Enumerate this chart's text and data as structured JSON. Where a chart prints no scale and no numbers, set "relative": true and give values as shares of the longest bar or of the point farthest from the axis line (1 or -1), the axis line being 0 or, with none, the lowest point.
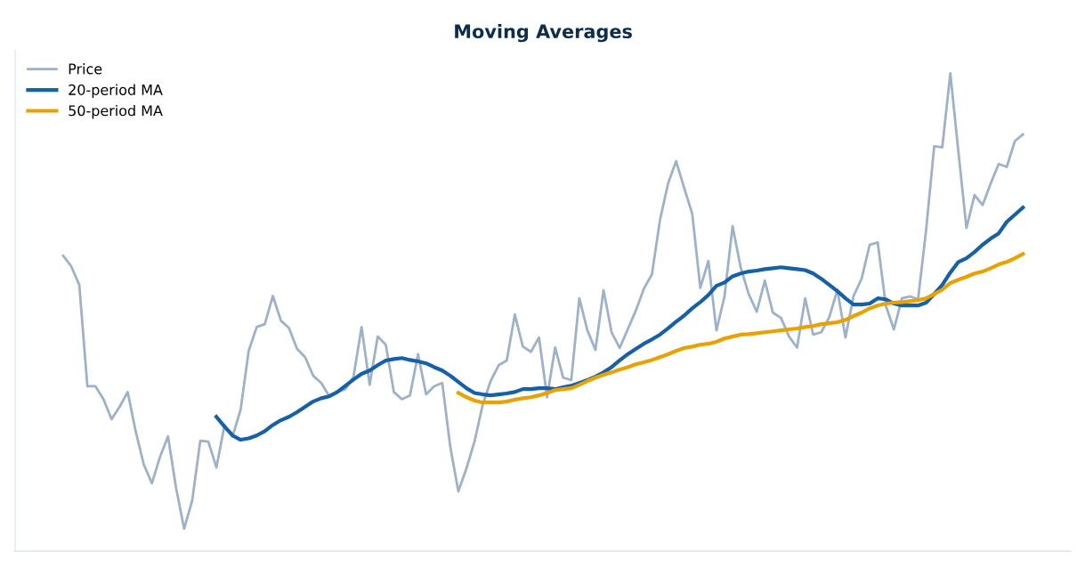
{
  "chart_data": {
    "type": "line",
    "title": "Moving Averages",
    "relative": true,
    "legend": "top left",
    "categories": [
      null,
      null,
      null,
      null,
      null,
      null,
      null,
      null,
      null,
      null,
      null,
      null,
      null,
      null,
      null,
      null,
      null,
      null,
      null,
      null,
      null,
      null,
      null,
      null,
      null,
      null,
      null,
      null,
      null,
      null,
      null,
      null,
      null,
      null,
      null,
      null,
      null,
      null,
      null,
      null,
      null,
      null,
      null,
      null,
      null,
      null,
      null,
      null,
      null,
      null,
      null,
      null,
      null,
      null,
      null,
      null,
      null,
      null,
      null,
      null,
      null,
      null,
      null,
      null,
      null,
      null,
      null,
      null,
      null,
      null,
      null,
      null,
      null,
      null,
      null,
      null,
      null,
      null,
      null,
      null,
      null,
      null,
      null,
      null,
      null,
      null,
      null,
      null,
      null,
      null,
      null,
      null,
      null,
      null,
      null,
      null,
      null,
      null,
      null,
      null,
      null,
      null,
      null,
      null,
      null,
      null,
      null,
      null,
      null,
      null,
      null,
      null,
      null,
      null,
      null,
      null,
      null,
      null,
      null,
      null
    ],
    "series": [
      {
        "name": "Price",
        "color": "#9db1c8",
        "values": [
          0.618,
          0.596,
          0.557,
          0.345,
          0.345,
          0.318,
          0.276,
          0.302,
          0.333,
          0.25,
          0.181,
          0.142,
          0.197,
          0.24,
          0.132,
          0.047,
          0.106,
          0.231,
          0.229,
          0.175,
          0.263,
          0.24,
          0.296,
          0.419,
          0.469,
          0.475,
          0.534,
          0.482,
          0.467,
          0.423,
          0.406,
          0.367,
          0.352,
          0.324,
          0.333,
          0.339,
          0.365,
          0.469,
          0.348,
          0.449,
          0.432,
          0.333,
          0.318,
          0.326,
          0.412,
          0.328,
          0.345,
          0.352,
          0.218,
          0.125,
          0.173,
          0.229,
          0.305,
          0.356,
          0.389,
          0.399,
          0.495,
          0.428,
          0.417,
          0.447,
          0.322,
          0.426,
          0.363,
          0.358,
          0.529,
          0.462,
          0.421,
          0.546,
          0.458,
          0.425,
          0.464,
          0.503,
          0.549,
          0.579,
          0.693,
          0.769,
          0.816,
          0.76,
          0.706,
          0.551,
          0.607,
          0.462,
          0.533,
          0.68,
          0.594,
          0.538,
          0.501,
          0.566,
          0.499,
          0.488,
          0.449,
          0.426,
          0.529,
          0.453,
          0.458,
          0.49,
          0.547,
          0.447,
          0.534,
          0.57,
          0.641,
          0.646,
          0.514,
          0.464,
          0.529,
          0.533,
          0.527,
          0.672,
          0.847,
          0.845,
          1,
          0.836,
          0.676,
          0.745,
          0.724,
          0.769,
          0.81,
          0.804,
          0.858,
          0.872
        ]
      },
      {
        "name": "20-period MA",
        "color": "#1560a6",
        "values": [
          null,
          null,
          null,
          null,
          null,
          null,
          null,
          null,
          null,
          null,
          null,
          null,
          null,
          null,
          null,
          null,
          null,
          null,
          null,
          0.281,
          0.261,
          0.242,
          0.233,
          0.236,
          0.242,
          0.251,
          0.264,
          0.274,
          0.281,
          0.291,
          0.302,
          0.313,
          0.32,
          0.324,
          0.333,
          0.346,
          0.359,
          0.371,
          0.378,
          0.389,
          0.399,
          0.402,
          0.404,
          0.4,
          0.397,
          0.393,
          0.385,
          0.378,
          0.367,
          0.354,
          0.341,
          0.331,
          0.328,
          0.326,
          0.328,
          0.33,
          0.333,
          0.339,
          0.339,
          0.341,
          0.341,
          0.339,
          0.343,
          0.346,
          0.352,
          0.358,
          0.365,
          0.374,
          0.385,
          0.399,
          0.412,
          0.423,
          0.434,
          0.443,
          0.453,
          0.466,
          0.48,
          0.493,
          0.508,
          0.521,
          0.536,
          0.555,
          0.562,
          0.575,
          0.581,
          0.585,
          0.587,
          0.59,
          0.592,
          0.594,
          0.592,
          0.59,
          0.588,
          0.581,
          0.57,
          0.557,
          0.544,
          0.529,
          0.516,
          0.516,
          0.518,
          0.529,
          0.527,
          0.518,
          0.514,
          0.514,
          0.514,
          0.52,
          0.538,
          0.557,
          0.583,
          0.605,
          0.613,
          0.626,
          0.641,
          0.654,
          0.665,
          0.689,
          0.704,
          0.719
        ]
      },
      {
        "name": "50-period MA",
        "color": "#e9a100",
        "values": [
          null,
          null,
          null,
          null,
          null,
          null,
          null,
          null,
          null,
          null,
          null,
          null,
          null,
          null,
          null,
          null,
          null,
          null,
          null,
          null,
          null,
          null,
          null,
          null,
          null,
          null,
          null,
          null,
          null,
          null,
          null,
          null,
          null,
          null,
          null,
          null,
          null,
          null,
          null,
          null,
          null,
          null,
          null,
          null,
          null,
          null,
          null,
          null,
          null,
          0.331,
          0.322,
          0.315,
          0.311,
          0.311,
          0.311,
          0.313,
          0.317,
          0.32,
          0.322,
          0.326,
          0.331,
          0.337,
          0.339,
          0.341,
          0.348,
          0.356,
          0.363,
          0.369,
          0.374,
          0.38,
          0.385,
          0.391,
          0.395,
          0.4,
          0.406,
          0.412,
          0.419,
          0.425,
          0.428,
          0.432,
          0.434,
          0.438,
          0.445,
          0.449,
          0.453,
          0.454,
          0.456,
          0.458,
          0.46,
          0.462,
          0.464,
          0.466,
          0.469,
          0.471,
          0.475,
          0.477,
          0.479,
          0.484,
          0.492,
          0.499,
          0.508,
          0.514,
          0.518,
          0.52,
          0.521,
          0.523,
          0.525,
          0.529,
          0.538,
          0.547,
          0.561,
          0.568,
          0.574,
          0.581,
          0.585,
          0.592,
          0.6,
          0.605,
          0.613,
          0.622
        ]
      }
    ]
  }
}
